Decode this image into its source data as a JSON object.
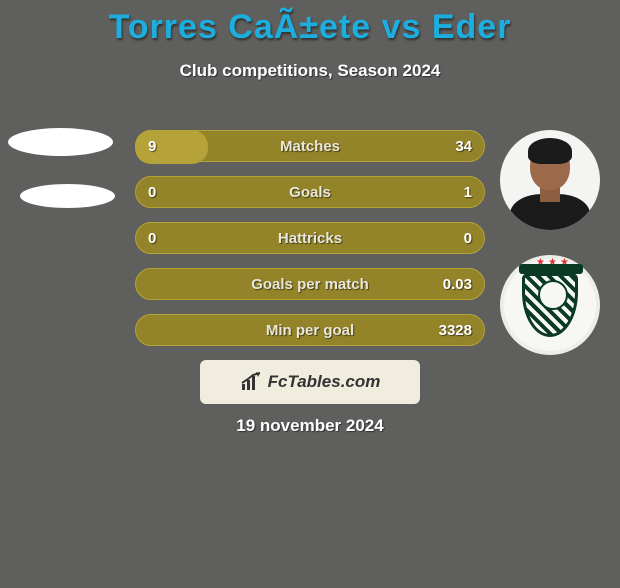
{
  "background_color": "#5f5f5d",
  "title": {
    "text": "Torres CaÃ±ete vs Eder",
    "color": "#1daee0",
    "fontsize": 34
  },
  "subtitle": {
    "text": "Club competitions, Season 2024",
    "color": "#ffffff",
    "fontsize": 17
  },
  "stats": {
    "row_bg": "#948429",
    "row_border": "#b5a339",
    "label_color": "#e9e6da",
    "value_fontsize": 15,
    "label_fontsize": 15,
    "rows": [
      {
        "label": "Matches",
        "left": "9",
        "right": "34",
        "left_pct": 21,
        "right_pct": 79
      },
      {
        "label": "Goals",
        "left": "0",
        "right": "1",
        "left_pct": 0,
        "right_pct": 100
      },
      {
        "label": "Hattricks",
        "left": "0",
        "right": "0",
        "left_pct": 0,
        "right_pct": 0
      },
      {
        "label": "Goals per match",
        "left": "",
        "right": "0.03",
        "left_pct": 0,
        "right_pct": 100
      },
      {
        "label": "Min per goal",
        "left": "",
        "right": "3328",
        "left_pct": 0,
        "right_pct": 100
      }
    ]
  },
  "footer": {
    "box_bg": "#f0edde",
    "brand_text": "FcTables.com",
    "brand_color": "#333333",
    "icon_color": "#333333"
  },
  "date": {
    "text": "19 november 2024",
    "color": "#ffffff",
    "fontsize": 17
  },
  "right_player": {
    "name": "Eder",
    "club_badge": "América Mineiro"
  }
}
